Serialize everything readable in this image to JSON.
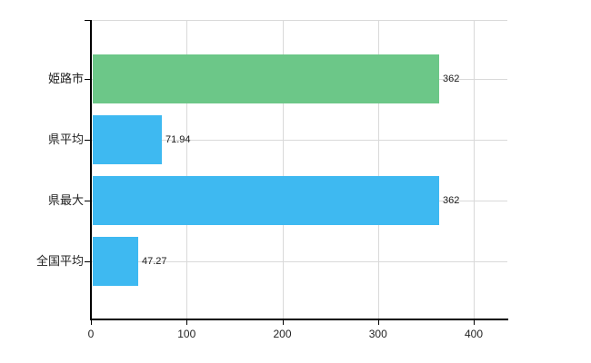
{
  "chart_data": {
    "type": "bar",
    "orientation": "horizontal",
    "title": "",
    "categories": [
      "姫路市",
      "県平均",
      "県最大",
      "全国平均"
    ],
    "values": [
      362,
      71.94,
      362,
      47.27
    ],
    "value_labels": [
      "362",
      "71.94",
      "362",
      "47.27"
    ],
    "bar_colors": [
      "#6cc788",
      "#3eb9f1",
      "#3eb9f1",
      "#3eb9f1"
    ],
    "x_ticks": [
      0,
      100,
      200,
      300,
      400
    ],
    "x_tick_labels": [
      "0",
      "100",
      "200",
      "300",
      "400"
    ],
    "xlim": [
      0,
      435
    ],
    "grid": true,
    "legend": false,
    "background": "#ffffff",
    "gridline_color": "#d9d9d9",
    "axis_color": "#000000",
    "text_color": "#222222"
  }
}
